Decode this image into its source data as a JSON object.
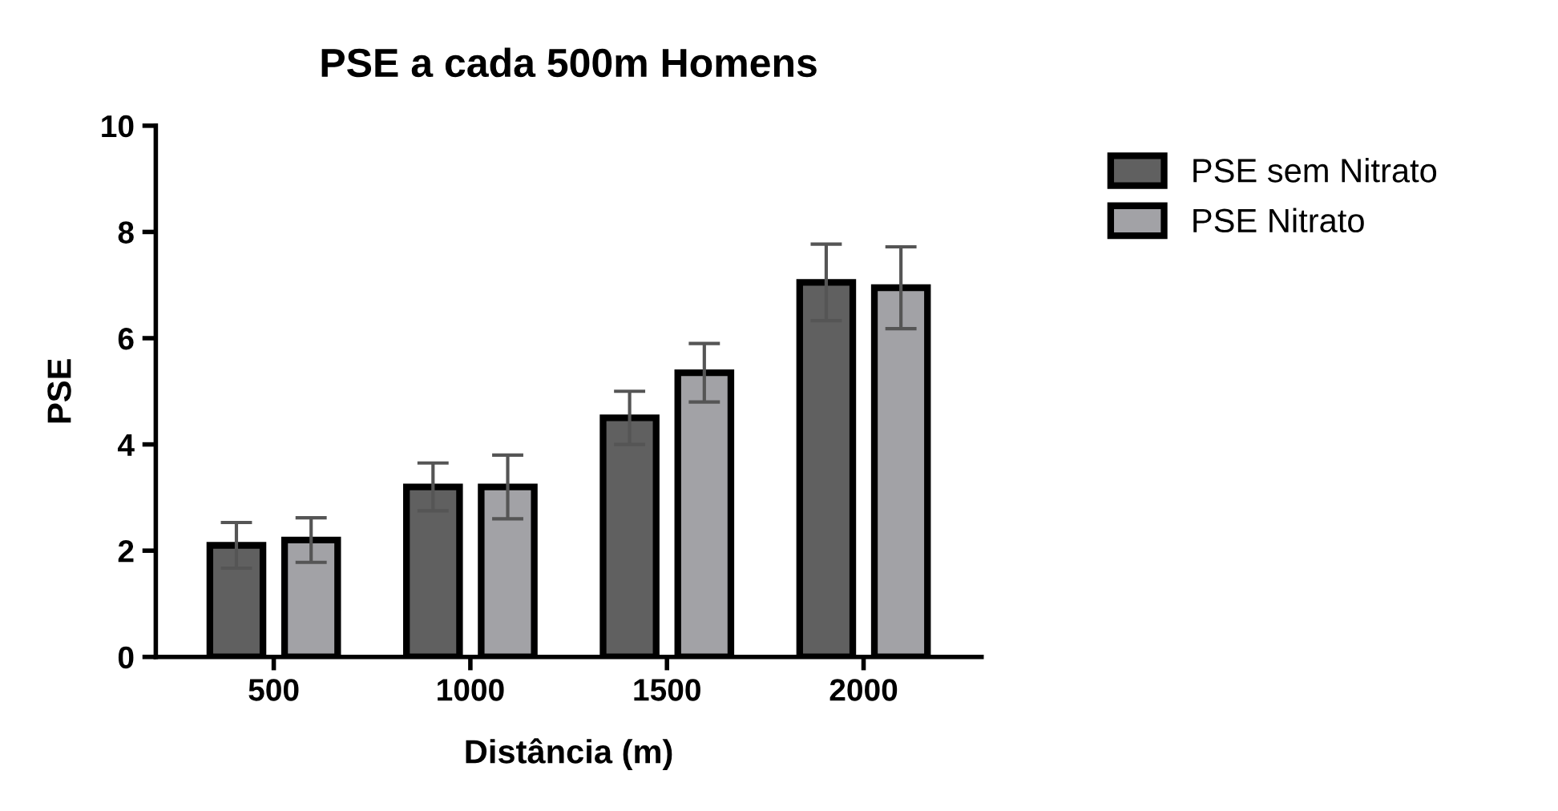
{
  "chart_data": {
    "type": "bar",
    "title": "PSE a cada 500m Homens",
    "xlabel": "Distância (m)",
    "ylabel": "PSE",
    "categories": [
      "500",
      "1000",
      "1500",
      "2000"
    ],
    "series": [
      {
        "name": "PSE sem Nitrato",
        "color": "#606060",
        "values": [
          2.1,
          3.2,
          4.5,
          7.05
        ],
        "errors": [
          0.43,
          0.45,
          0.5,
          0.72
        ]
      },
      {
        "name": "PSE Nitrato",
        "color": "#a2a2a6",
        "values": [
          2.2,
          3.2,
          5.35,
          6.95
        ],
        "errors": [
          0.42,
          0.6,
          0.55,
          0.77
        ]
      }
    ],
    "ylim": [
      0,
      10
    ],
    "yticks": [
      0,
      2,
      4,
      6,
      8,
      10
    ],
    "grid": false,
    "legend": "top right"
  }
}
